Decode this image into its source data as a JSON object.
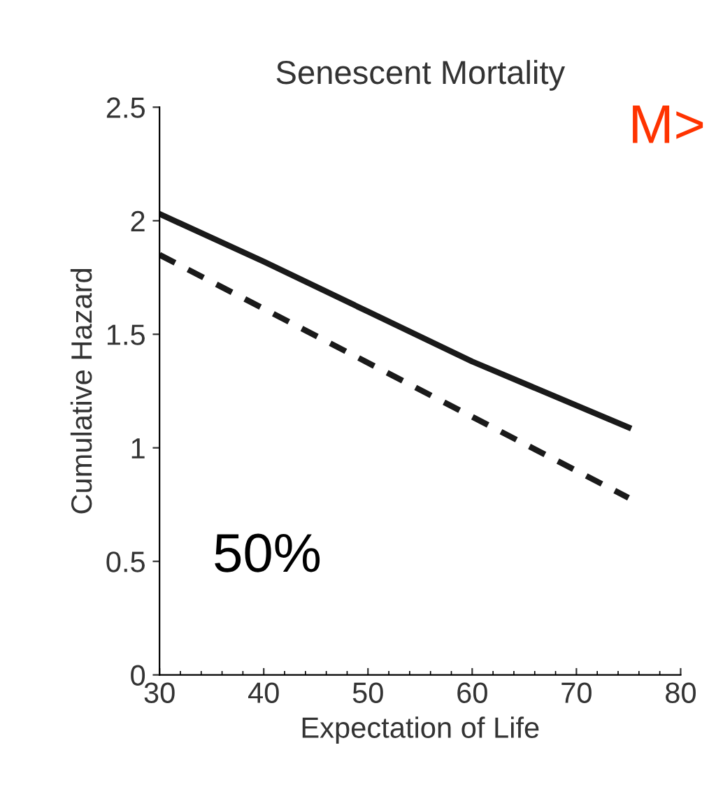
{
  "chart_data": {
    "type": "line",
    "title": "Senescent Mortality",
    "xlabel": "Expectation of Life",
    "ylabel": "Cumulative Hazard",
    "xlim": [
      30,
      80
    ],
    "xticks": [
      30,
      40,
      50,
      60,
      70,
      80
    ],
    "ylim": [
      0,
      2.5
    ],
    "yticks": [
      0,
      0.5,
      1,
      1.5,
      2,
      2.5
    ],
    "series": [
      {
        "x": [
          30,
          40,
          50,
          60,
          75
        ],
        "values": [
          2.03,
          1.82,
          1.6,
          1.38,
          1.09
        ],
        "color": "#1a1a1a",
        "line_style": "solid"
      },
      {
        "x": [
          30,
          75
        ],
        "values": [
          1.85,
          0.78
        ],
        "color": "#1a1a1a",
        "line_style": "dashed"
      }
    ],
    "annotations": [
      "M>",
      "50%"
    ]
  }
}
